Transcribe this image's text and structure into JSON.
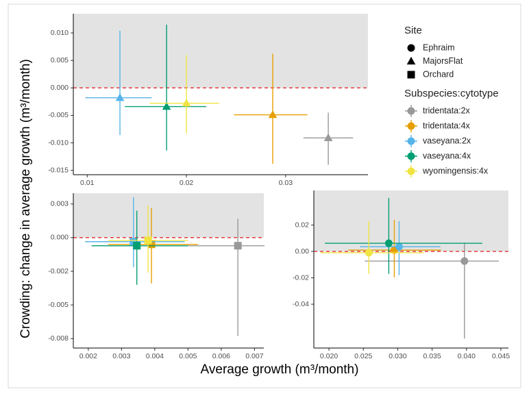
{
  "labels": {
    "y_label": "Crowding: change in average growth (m³/month)",
    "x_label": "Average growth (m³/month)"
  },
  "legend": {
    "site": {
      "title": "Site",
      "items": [
        {
          "name": "Ephraim",
          "marker": "circle"
        },
        {
          "name": "MajorsFlat",
          "marker": "triangle"
        },
        {
          "name": "Orchard",
          "marker": "square"
        }
      ]
    },
    "subspecies": {
      "title": "Subspecies:cytotype",
      "items": [
        {
          "name": "tridentata:2x",
          "color": "#999999"
        },
        {
          "name": "tridentata:4x",
          "color": "#E69F00"
        },
        {
          "name": "vaseyana:2x",
          "color": "#56B4E9"
        },
        {
          "name": "vaseyana:4x",
          "color": "#009E73"
        },
        {
          "name": "wyomingensis:4x",
          "color": "#F0E442"
        }
      ]
    }
  },
  "chart_data": [
    {
      "type": "scatter",
      "marker": "triangle",
      "hline": 0,
      "xlim": [
        0.0086,
        0.0383
      ],
      "xticks": [
        0.01,
        0.02,
        0.03
      ],
      "ylim": [
        -0.0158,
        0.0135
      ],
      "yticks": [
        {
          "value": 0.01,
          "label": "0.010"
        },
        0.005,
        {
          "value": 0,
          "label": "0.000"
        },
        -0.005,
        {
          "value": -0.01,
          "label": "-0.010"
        },
        -0.015
      ],
      "points": [
        {
          "color": "#999999",
          "x": 0.0343,
          "y": -0.0091,
          "xmin": 0.0318,
          "xmax": 0.0368,
          "ymin": -0.014,
          "ymax": -0.0045
        },
        {
          "color": "#E69F00",
          "x": 0.0287,
          "y": -0.0049,
          "xmin": 0.0248,
          "xmax": 0.0322,
          "ymin": -0.0138,
          "ymax": 0.0062
        },
        {
          "color": "#56B4E9",
          "x": 0.0133,
          "y": -0.0018,
          "xmin": 0.0098,
          "xmax": 0.0165,
          "ymin": -0.0086,
          "ymax": 0.0104
        },
        {
          "color": "#009E73",
          "x": 0.018,
          "y": -0.0034,
          "xmin": 0.0138,
          "xmax": 0.022,
          "ymin": -0.0114,
          "ymax": 0.0115
        },
        {
          "color": "#F0E442",
          "x": 0.02,
          "y": -0.0028,
          "xmin": 0.0163,
          "xmax": 0.0233,
          "ymin": -0.0083,
          "ymax": 0.006
        }
      ]
    },
    {
      "type": "scatter",
      "marker": "square",
      "hline": 0,
      "xlim": [
        0.00155,
        0.00728
      ],
      "xticks": [
        0.002,
        0.003,
        0.004,
        0.005,
        0.006,
        0.007
      ],
      "ylim": [
        -0.0082,
        0.0033
      ],
      "yticks": [
        {
          "value": 0.0025,
          "label": "0.003"
        },
        {
          "value": 0,
          "label": "0.000"
        },
        {
          "value": -0.0025,
          "label": "-0.002"
        },
        -0.005,
        {
          "value": -0.0075,
          "label": "-0.008"
        }
      ],
      "points": [
        {
          "color": "#999999",
          "x": 0.0065,
          "y": -0.0006,
          "xmin": 0.0026,
          "xmax": 0.0073,
          "ymin": -0.0073,
          "ymax": 0.0014
        },
        {
          "color": "#E69F00",
          "x": 0.0039,
          "y": -0.0005,
          "xmin": 0.0026,
          "xmax": 0.0053,
          "ymin": -0.0034,
          "ymax": 0.0022
        },
        {
          "color": "#56B4E9",
          "x": 0.00336,
          "y": -0.0003,
          "xmin": 0.0019,
          "xmax": 0.0049,
          "ymin": -0.0022,
          "ymax": 0.003
        },
        {
          "color": "#009E73",
          "x": 0.00346,
          "y": -0.0006,
          "xmin": 0.0021,
          "xmax": 0.005,
          "ymin": -0.0035,
          "ymax": 0.002
        },
        {
          "color": "#F0E442",
          "x": 0.0038,
          "y": -0.0002,
          "xmin": 0.0026,
          "xmax": 0.005,
          "ymin": -0.0026,
          "ymax": 0.0024
        }
      ]
    },
    {
      "type": "scatter",
      "marker": "circle",
      "hline": 0,
      "xlim": [
        0.0178,
        0.0461
      ],
      "xticks": [
        {
          "value": 0.02,
          "label": "0.020"
        },
        {
          "value": 0.025,
          "label": "0.025"
        },
        {
          "value": 0.03,
          "label": "0.030"
        },
        {
          "value": 0.035,
          "label": "0.035"
        },
        {
          "value": 0.04,
          "label": "0.040"
        },
        {
          "value": 0.045,
          "label": "0.045"
        }
      ],
      "ylim": [
        -0.0732,
        0.0462
      ],
      "yticks": [
        0.02,
        {
          "value": 0,
          "label": "0.00"
        },
        -0.02,
        -0.04
      ],
      "points": [
        {
          "color": "#999999",
          "x": 0.0397,
          "y": -0.0073,
          "xmin": 0.0252,
          "xmax": 0.0447,
          "ymin": -0.066,
          "ymax": 0.0068
        },
        {
          "color": "#E69F00",
          "x": 0.0295,
          "y": 0.001,
          "xmin": 0.0228,
          "xmax": 0.0363,
          "ymin": -0.0197,
          "ymax": 0.024
        },
        {
          "color": "#56B4E9",
          "x": 0.0302,
          "y": 0.0036,
          "xmin": 0.0245,
          "xmax": 0.0362,
          "ymin": -0.018,
          "ymax": 0.0229
        },
        {
          "color": "#009E73",
          "x": 0.0287,
          "y": 0.0062,
          "xmin": 0.0194,
          "xmax": 0.0423,
          "ymin": -0.017,
          "ymax": 0.0405
        },
        {
          "color": "#F0E442",
          "x": 0.0258,
          "y": -0.001,
          "xmin": 0.0188,
          "xmax": 0.0338,
          "ymin": -0.017,
          "ymax": 0.0229
        }
      ]
    }
  ]
}
